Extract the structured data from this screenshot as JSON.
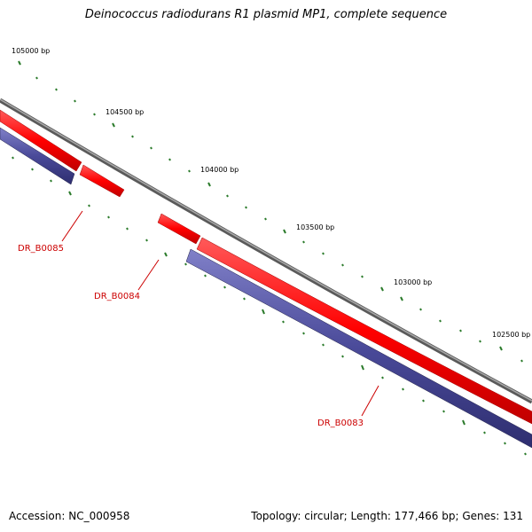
{
  "title": "Deinococcus radiodurans R1 plasmid MP1, complete sequence",
  "footer": {
    "accession": "Accession: NC_000958",
    "summary": "Topology: circular; Length: 177,466 bp; Genes: 131"
  },
  "colors": {
    "backbone": "#808080",
    "forward_strand": "#ff0000",
    "reverse_strand": "#4a4a99",
    "ticks": "#2a7a2a",
    "label": "#cc0000"
  },
  "scale_labels": [
    "105000 bp",
    "104500 bp",
    "104000 bp",
    "103500 bp",
    "103000 bp",
    "102500 bp"
  ],
  "genes": [
    {
      "name": "DR_B0085"
    },
    {
      "name": "DR_B0084"
    },
    {
      "name": "DR_B0083"
    }
  ]
}
